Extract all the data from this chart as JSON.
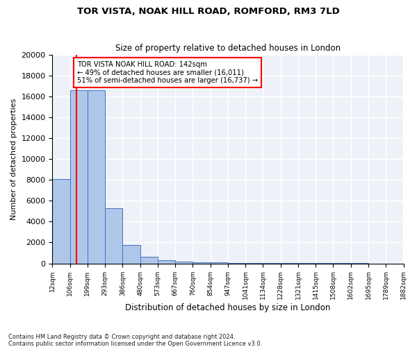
{
  "title": "TOR VISTA, NOAK HILL ROAD, ROMFORD, RM3 7LD",
  "subtitle": "Size of property relative to detached houses in London",
  "xlabel": "Distribution of detached houses by size in London",
  "ylabel": "Number of detached properties",
  "bar_values": [
    8050,
    16600,
    16580,
    5300,
    1800,
    650,
    330,
    190,
    100,
    80,
    60,
    50,
    40,
    30,
    25,
    20,
    15,
    10,
    5,
    3
  ],
  "tick_labels": [
    "12sqm",
    "106sqm",
    "199sqm",
    "293sqm",
    "386sqm",
    "480sqm",
    "573sqm",
    "667sqm",
    "760sqm",
    "854sqm",
    "947sqm",
    "1041sqm",
    "1134sqm",
    "1228sqm",
    "1321sqm",
    "1415sqm",
    "1508sqm",
    "1602sqm",
    "1695sqm",
    "1789sqm",
    "1882sqm"
  ],
  "bar_color": "#aec6e8",
  "bar_edgecolor": "#4472c4",
  "vline_position": 1.36,
  "vline_color": "red",
  "annotation_text": "TOR VISTA NOAK HILL ROAD: 142sqm\n← 49% of detached houses are smaller (16,011)\n51% of semi-detached houses are larger (16,737) →",
  "ylim": [
    0,
    20000
  ],
  "yticks": [
    0,
    2000,
    4000,
    6000,
    8000,
    10000,
    12000,
    14000,
    16000,
    18000,
    20000
  ],
  "footnote1": "Contains HM Land Registry data © Crown copyright and database right 2024.",
  "footnote2": "Contains public sector information licensed under the Open Government Licence v3.0.",
  "bg_color": "#eef2f8"
}
